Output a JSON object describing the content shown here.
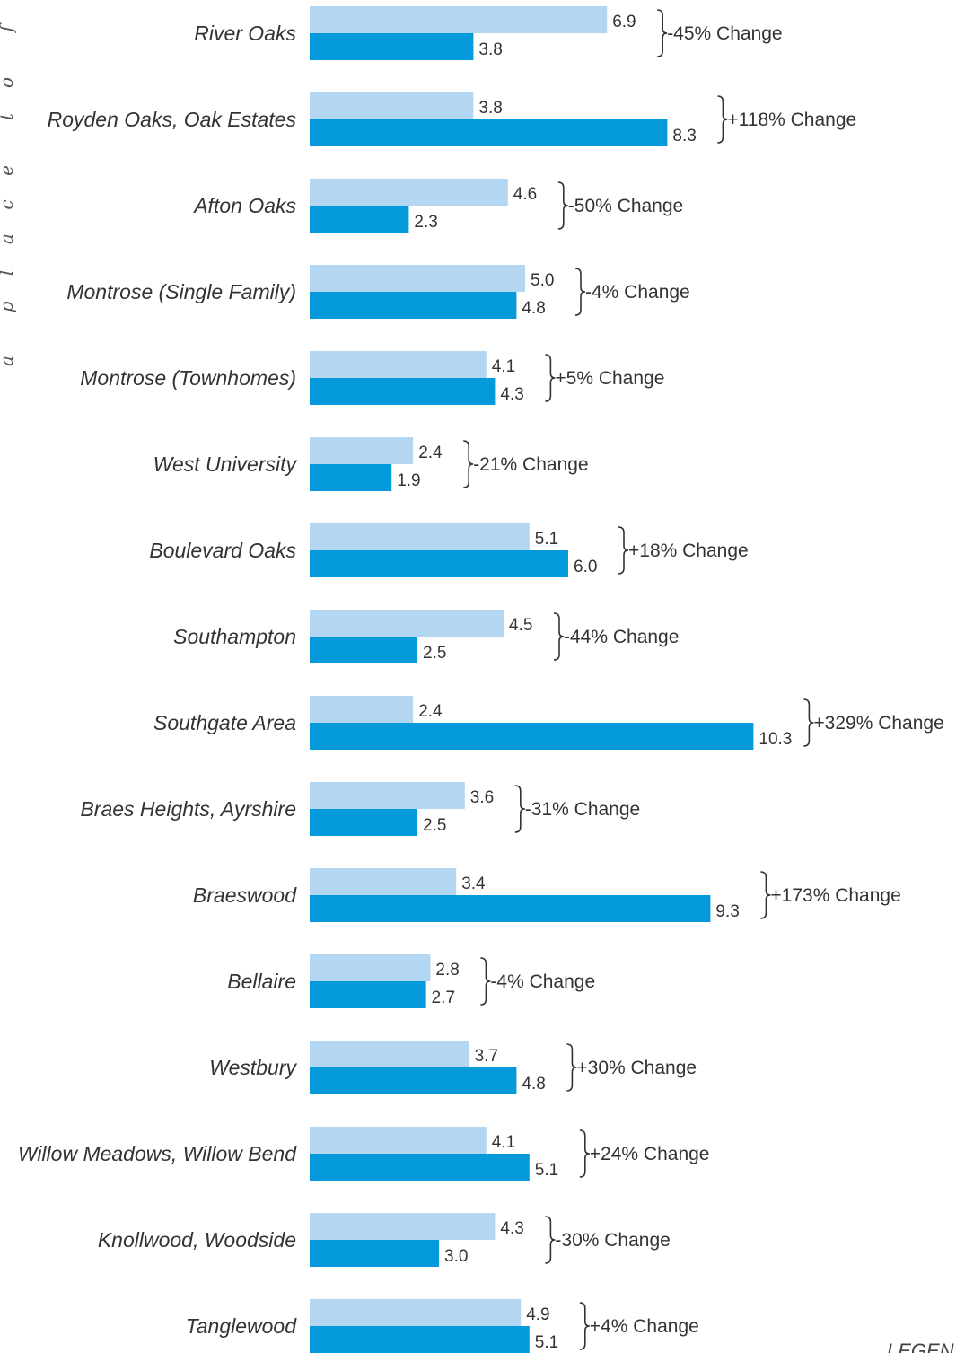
{
  "sidebar": {
    "tagline": "a place to find"
  },
  "legend": {
    "label": "LEGEN"
  },
  "colors": {
    "series_1": "#b3d7f2",
    "series_2": "#0499db"
  },
  "chart_data": {
    "type": "bar",
    "orientation": "horizontal",
    "categories": [
      "River Oaks",
      "Royden Oaks, Oak Estates",
      "Afton Oaks",
      "Montrose (Single Family)",
      "Montrose (Townhomes)",
      "West University",
      "Boulevard Oaks",
      "Southampton",
      "Southgate Area",
      "Braes Heights, Ayrshire",
      "Braeswood",
      "Bellaire",
      "Westbury",
      "Willow Meadows, Willow Bend",
      "Knollwood, Woodside",
      "Tanglewood"
    ],
    "series": [
      {
        "values": [
          6.9,
          3.8,
          4.6,
          5.0,
          4.1,
          2.4,
          5.1,
          4.5,
          2.4,
          3.6,
          3.4,
          2.8,
          3.7,
          4.1,
          4.3,
          4.9
        ],
        "labels": [
          "6.9",
          "3.8",
          "4.6",
          "5.0",
          "4.1",
          "2.4",
          "5.1",
          "4.5",
          "2.4",
          "3.6",
          "3.4",
          "2.8",
          "3.7",
          "4.1",
          "4.3",
          "4.9"
        ]
      },
      {
        "values": [
          3.8,
          8.3,
          2.3,
          4.8,
          4.3,
          1.9,
          6.0,
          2.5,
          10.3,
          2.5,
          9.3,
          2.7,
          4.8,
          5.1,
          3.0,
          5.1
        ],
        "labels": [
          "3.8",
          "8.3",
          "2.3",
          "4.8",
          "4.3",
          "1.9",
          "6.0",
          "2.5",
          "10.3",
          "2.5",
          "9.3",
          "2.7",
          "4.8",
          "5.1",
          "3.0",
          "5.1"
        ]
      }
    ],
    "changes": [
      "-45% Change",
      "+118% Change",
      "-50% Change",
      "-4% Change",
      "+5% Change",
      "-21% Change",
      "+18% Change",
      "-44% Change",
      "+329% Change",
      "-31% Change",
      "+173% Change",
      "-4% Change",
      "+30% Change",
      "+24% Change",
      "-30% Change",
      "+4% Change"
    ],
    "xlim": [
      0,
      10.3
    ],
    "grid": false
  }
}
